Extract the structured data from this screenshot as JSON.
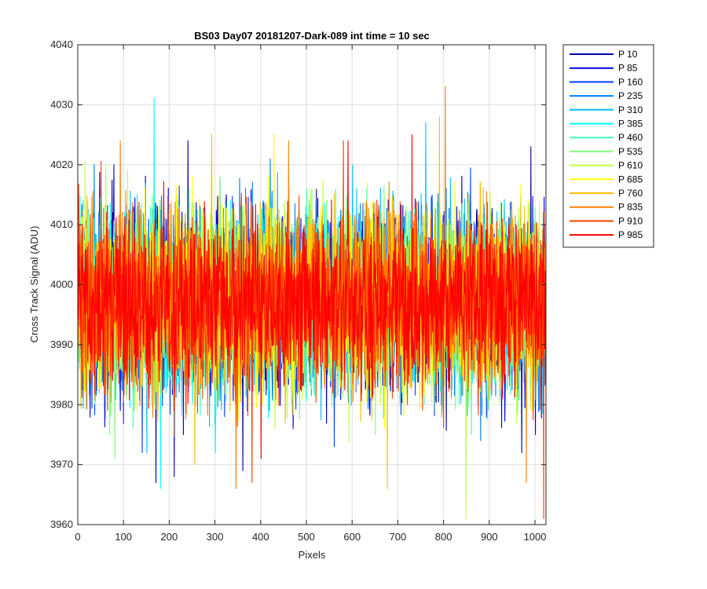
{
  "chart_data": {
    "type": "line",
    "title": "BS03 Day07 20181207-Dark-089 int time = 10 sec",
    "xlabel": "Pixels",
    "ylabel": "Cross Track Signal (ADU)",
    "xlim": [
      0,
      1024
    ],
    "ylim": [
      3960,
      4040
    ],
    "xticks": [
      0,
      100,
      200,
      300,
      400,
      500,
      600,
      700,
      800,
      900,
      1000
    ],
    "yticks": [
      3960,
      3970,
      3980,
      3990,
      4000,
      4010,
      4020,
      4030,
      4040
    ],
    "grid": true,
    "legend_position": "outside-top-right",
    "series": [
      {
        "name": "P 10",
        "color": "#0000aa",
        "mean": 3997,
        "spread": 7.5,
        "spikes": [
          [
            170,
            3967
          ],
          [
            210,
            3968
          ],
          [
            240,
            4024
          ],
          [
            360,
            3969
          ],
          [
            990,
            4023
          ],
          [
            970,
            3972
          ]
        ]
      },
      {
        "name": "P 85",
        "color": "#0000e6",
        "mean": 3997,
        "spread": 7.5,
        "spikes": [
          [
            78,
            4020
          ],
          [
            230,
            3975
          ],
          [
            470,
            3976
          ],
          [
            1000,
            3975
          ]
        ]
      },
      {
        "name": "P 160",
        "color": "#0040ff",
        "mean": 3997,
        "spread": 7.5,
        "spikes": [
          [
            140,
            3972
          ],
          [
            320,
            3978
          ],
          [
            560,
            3973
          ]
        ]
      },
      {
        "name": "P 235",
        "color": "#0080ff",
        "mean": 3997,
        "spread": 7.5,
        "spikes": [
          [
            35,
            4020
          ],
          [
            420,
            4021
          ],
          [
            880,
            3974
          ]
        ]
      },
      {
        "name": "P 310",
        "color": "#00bfff",
        "mean": 3997,
        "spread": 7.5,
        "spikes": [
          [
            760,
            4027
          ],
          [
            150,
            3972
          ],
          [
            600,
            4020
          ]
        ]
      },
      {
        "name": "P 385",
        "color": "#00ffff",
        "mean": 3997,
        "spread": 7.5,
        "spikes": [
          [
            166,
            4031
          ],
          [
            180,
            3966
          ],
          [
            300,
            3972
          ]
        ]
      },
      {
        "name": "P 460",
        "color": "#40ffbf",
        "mean": 3997,
        "spread": 7.5,
        "spikes": [
          [
            120,
            3976
          ],
          [
            500,
            4016
          ],
          [
            860,
            3975
          ]
        ]
      },
      {
        "name": "P 535",
        "color": "#80ff80",
        "mean": 3997,
        "spread": 7.5,
        "spikes": [
          [
            80,
            3971
          ],
          [
            310,
            4018
          ],
          [
            650,
            3975
          ]
        ]
      },
      {
        "name": "P 610",
        "color": "#bfff40",
        "mean": 3997,
        "spread": 7.5,
        "spikes": [
          [
            848,
            3961
          ],
          [
            60,
            4020
          ],
          [
            430,
            3976
          ]
        ]
      },
      {
        "name": "P 685",
        "color": "#ffff00",
        "mean": 3997,
        "spread": 7.5,
        "spikes": [
          [
            428,
            4025
          ],
          [
            670,
            3976
          ],
          [
            250,
            4018
          ]
        ]
      },
      {
        "name": "P 760",
        "color": "#ffbf00",
        "mean": 3997,
        "spread": 7.5,
        "spikes": [
          [
            292,
            4025
          ],
          [
            676,
            3966
          ],
          [
            255,
            3970
          ],
          [
            790,
            4028
          ]
        ]
      },
      {
        "name": "P 835",
        "color": "#ff8000",
        "mean": 3997,
        "spread": 7.5,
        "spikes": [
          [
            803,
            4033
          ],
          [
            345,
            3966
          ],
          [
            92,
            4024
          ],
          [
            980,
            3967
          ],
          [
            460,
            4024
          ]
        ]
      },
      {
        "name": "P 910",
        "color": "#ff4000",
        "mean": 3997,
        "spread": 7.5,
        "spikes": [
          [
            1018,
            3961
          ],
          [
            380,
            3967
          ],
          [
            580,
            4024
          ],
          [
            720,
            3980
          ]
        ]
      },
      {
        "name": "P 985",
        "color": "#ff0000",
        "mean": 3997,
        "spread": 7.0,
        "spikes": [
          [
            730,
            4025
          ],
          [
            400,
            3971
          ],
          [
            590,
            4024
          ],
          [
            210,
            3979
          ]
        ]
      }
    ]
  }
}
